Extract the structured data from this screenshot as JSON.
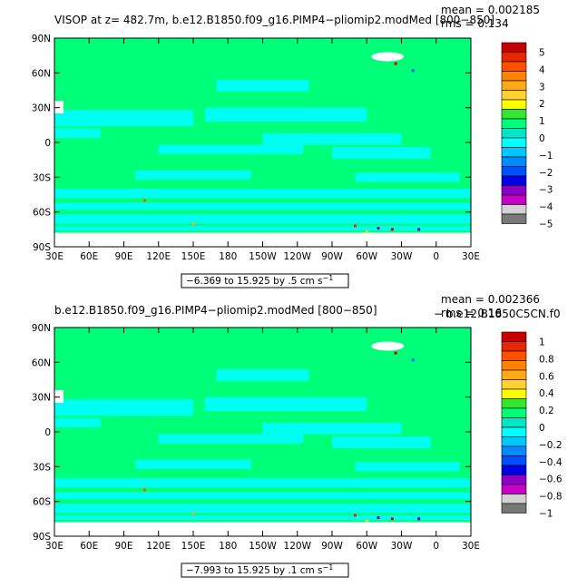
{
  "chart_data": [
    {
      "type": "heatmap",
      "title": "VISOP  at z=  482.7m, b.e12.B1850.f09_g16.PIMP4−pliomip2.modMed [800−850]",
      "stat_mean": "mean = 0.002185",
      "stat_rms": "rms = 0.134",
      "range_label": "−6.369 to 15.925 by .5 cm s",
      "range_unit_exp": "−1",
      "x_ticks": [
        "30E",
        "60E",
        "90E",
        "120E",
        "150E",
        "180",
        "150W",
        "120W",
        "90W",
        "60W",
        "30W",
        "0",
        "30E"
      ],
      "y_ticks": [
        "90N",
        "60N",
        "30N",
        "0",
        "30S",
        "60S",
        "90S"
      ],
      "xlim": [
        30,
        390
      ],
      "ylim": [
        -90,
        90
      ],
      "colorbar": {
        "labels": [
          "5",
          "4",
          "3",
          "2",
          "1",
          "0",
          "−1",
          "−2",
          "−3",
          "−4",
          "−5"
        ],
        "colors": [
          "#c80000",
          "#e62800",
          "#ff5000",
          "#ff8200",
          "#ffaa14",
          "#ffd232",
          "#ffff00",
          "#32e632",
          "#00ff78",
          "#00e6c8",
          "#00ffff",
          "#00c8ff",
          "#008cff",
          "#0050ff",
          "#0000e6",
          "#8c00c8",
          "#c800c8",
          "#d2d2d2",
          "#787878"
        ]
      },
      "field_colors": {
        "ocean": "#00ff78",
        "band": "#00ffff",
        "land": "#ffffff"
      }
    },
    {
      "type": "heatmap",
      "title": "b.e12.B1850.f09_g16.PIMP4−pliomip2.modMed [800−850]",
      "title_right": "− b.e12.B1850C5CN.f0",
      "stat_mean": "mean = 0.002366",
      "stat_rms": "rms = 0.16",
      "range_label": "−7.993 to 15.925 by .1 cm s",
      "range_unit_exp": "−1",
      "x_ticks": [
        "30E",
        "60E",
        "90E",
        "120E",
        "150E",
        "180",
        "150W",
        "120W",
        "90W",
        "60W",
        "30W",
        "0",
        "30E"
      ],
      "y_ticks": [
        "90N",
        "60N",
        "30N",
        "0",
        "30S",
        "60S",
        "90S"
      ],
      "xlim": [
        30,
        390
      ],
      "ylim": [
        -90,
        90
      ],
      "colorbar": {
        "labels": [
          "1",
          "0.8",
          "0.6",
          "0.4",
          "0.2",
          "0",
          "−0.2",
          "−0.4",
          "−0.6",
          "−0.8",
          "−1"
        ],
        "colors": [
          "#c80000",
          "#e62800",
          "#ff5000",
          "#ff8200",
          "#ffaa14",
          "#ffd232",
          "#ffff00",
          "#32e632",
          "#00ff78",
          "#00e6c8",
          "#00ffff",
          "#00c8ff",
          "#008cff",
          "#0050ff",
          "#0000e6",
          "#8c00c8",
          "#c800c8",
          "#d2d2d2",
          "#787878"
        ]
      },
      "field_colors": {
        "ocean": "#00ff78",
        "band": "#00ffff",
        "land": "#ffffff"
      }
    }
  ]
}
